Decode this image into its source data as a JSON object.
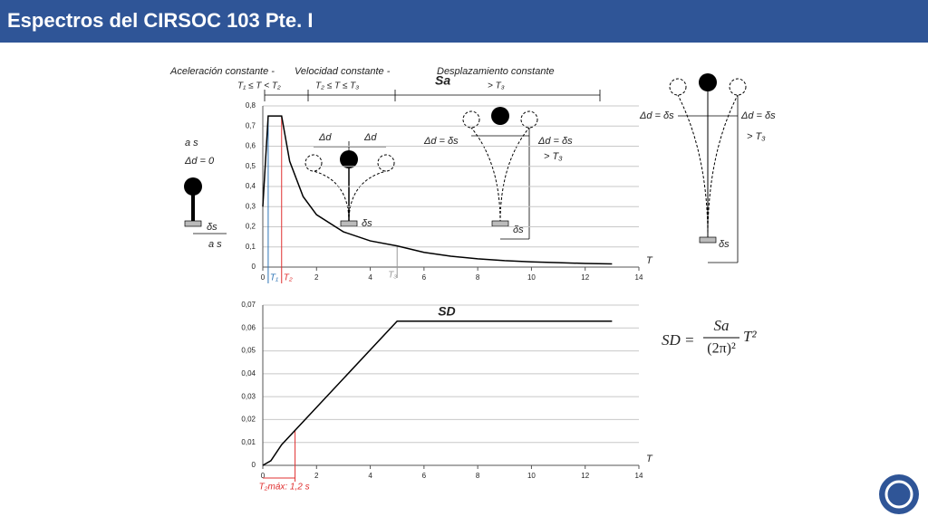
{
  "title": "Espectros del CIRSOC 103 Pte. I",
  "chart_data": [
    {
      "type": "line",
      "xlabel": "T",
      "x": [
        0,
        0.2,
        0.7,
        1,
        1.5,
        2,
        3,
        4,
        5,
        6,
        7,
        8,
        9,
        10,
        11,
        12,
        13
      ],
      "series": [
        {
          "name": "Sa",
          "color": "#000000",
          "values": [
            0.3,
            0.75,
            0.75,
            0.525,
            0.35,
            0.26,
            0.175,
            0.13,
            0.105,
            0.073,
            0.054,
            0.041,
            0.032,
            0.026,
            0.022,
            0.018,
            0.016
          ]
        }
      ],
      "xlim": [
        0,
        14
      ],
      "xticks": [
        0,
        2,
        4,
        6,
        8,
        10,
        12,
        14
      ],
      "ylim": [
        0,
        0.8
      ],
      "yticks": [
        0,
        {
          "value": 0.1,
          "label": "0,1"
        },
        {
          "value": 0.2,
          "label": "0,2"
        },
        {
          "value": 0.3,
          "label": "0,3"
        },
        {
          "value": 0.4,
          "label": "0,4"
        },
        {
          "value": 0.5,
          "label": "0,5"
        },
        {
          "value": 0.6,
          "label": "0,6"
        },
        {
          "value": 0.7,
          "label": "0,7"
        },
        {
          "value": 0.8,
          "label": "0,8"
        }
      ],
      "grid": true,
      "markers": [
        {
          "label": "T₁",
          "x": 0.2,
          "color": "#2e75b6"
        },
        {
          "label": "T₂",
          "x": 0.7,
          "color": "#e03030"
        },
        {
          "label": "T₃",
          "x": 5,
          "color": "#999999"
        }
      ]
    },
    {
      "type": "line",
      "xlabel": "T",
      "x": [
        0,
        0.3,
        0.7,
        5,
        13
      ],
      "series": [
        {
          "name": "SD",
          "color": "#000000",
          "values": [
            0,
            0.002,
            0.009,
            0.063,
            0.063
          ]
        }
      ],
      "xlim": [
        0,
        14
      ],
      "xticks": [
        0,
        2,
        4,
        6,
        8,
        10,
        12,
        14
      ],
      "ylim": [
        0,
        0.07
      ],
      "yticks": [
        0,
        {
          "value": 0.01,
          "label": "0,01"
        },
        {
          "value": 0.02,
          "label": "0,02"
        },
        {
          "value": 0.03,
          "label": "0,03"
        },
        {
          "value": 0.04,
          "label": "0,04"
        },
        {
          "value": 0.05,
          "label": "0,05"
        },
        {
          "value": 0.06,
          "label": "0,06"
        },
        {
          "value": 0.07,
          "label": "0,07"
        }
      ],
      "grid": true,
      "markers": [
        {
          "label": "T₂máx: 1,2 s",
          "x": 1.2,
          "color": "#e03030"
        }
      ]
    }
  ],
  "annotations": [
    "Aceleración constante  -",
    "Velocidad constante  -",
    "Desplazamiento constante",
    "T₁ ≤ T < T₂",
    "T₂ ≤ T ≤ T₃",
    "> T₃",
    "a s",
    "Δd = 0",
    "δs",
    "a s",
    "Δd",
    "Δd",
    "δs",
    "Δd = δs",
    "Δd = δs",
    "> T₃",
    "δs",
    "Δd = δs",
    "Δd = δs",
    "> T₃",
    "δs"
  ],
  "formula": {
    "lhs": "SD =",
    "numerator": "Sa",
    "denominator": "(2π)²",
    "factor": "T²"
  }
}
